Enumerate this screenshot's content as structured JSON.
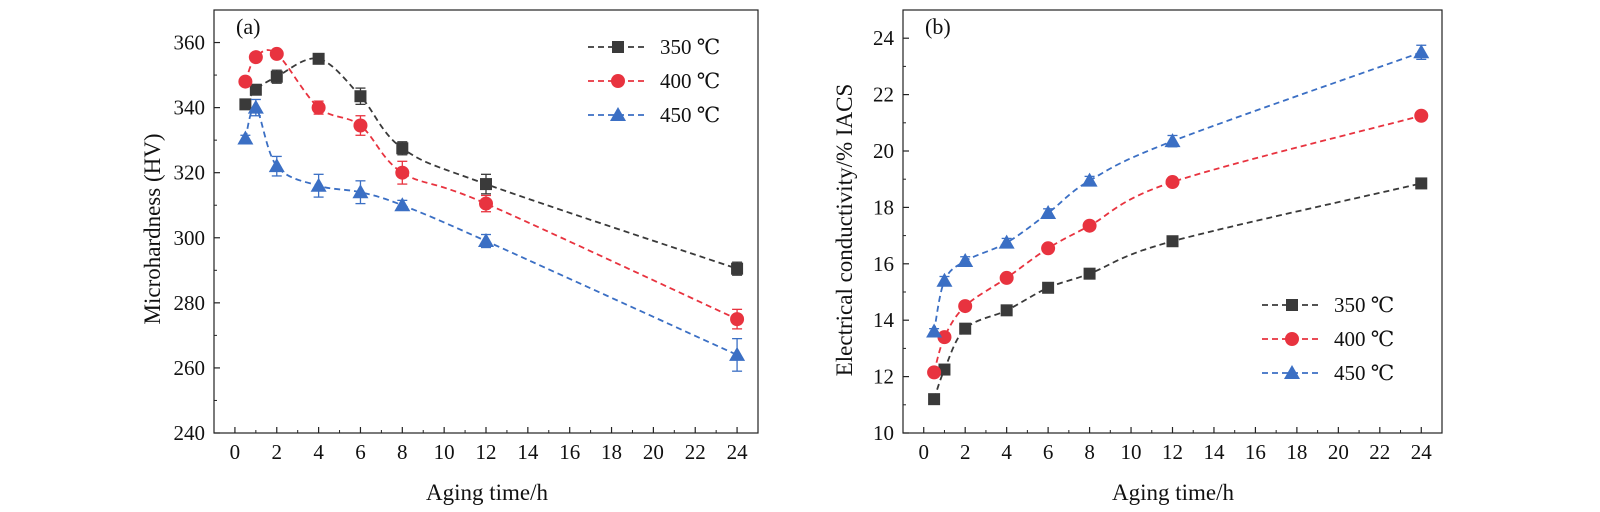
{
  "chart_data": [
    {
      "panel_label": "(a)",
      "type": "line",
      "x": [
        0.5,
        1,
        2,
        4,
        6,
        8,
        12,
        24
      ],
      "xlabel": "Aging time/h",
      "ylabel": "Microhardness (HV)",
      "xlim": [
        -1,
        25
      ],
      "ylim": [
        240,
        370
      ],
      "xticks": [
        "0",
        "2",
        "4",
        "6",
        "8",
        "10",
        "12",
        "14",
        "16",
        "18",
        "20",
        "22",
        "24"
      ],
      "yticks": [
        "240",
        "260",
        "280",
        "300",
        "320",
        "340",
        "360"
      ],
      "grid": false,
      "legend_position": "top-right",
      "series": [
        {
          "name": "350 ℃",
          "color": "#3a3a3a",
          "marker": "square",
          "values": [
            341,
            345.5,
            349.5,
            355,
            343.5,
            327.5,
            316.5,
            290.5
          ],
          "errors": [
            1,
            1.5,
            2,
            1.5,
            2.5,
            2,
            3,
            2
          ]
        },
        {
          "name": "400 ℃",
          "color": "#e8333f",
          "marker": "circle",
          "values": [
            348,
            355.5,
            356.5,
            340,
            334.5,
            320,
            310.5,
            275
          ],
          "errors": [
            1,
            1,
            1,
            2,
            3,
            3.5,
            2.5,
            3
          ]
        },
        {
          "name": "450 ℃",
          "color": "#3b6fc4",
          "marker": "triangle",
          "values": [
            330.5,
            340,
            322,
            316,
            314,
            310,
            299,
            264
          ],
          "errors": [
            1,
            2.5,
            3,
            3.5,
            3.5,
            1.5,
            2,
            5
          ]
        }
      ]
    },
    {
      "panel_label": "(b)",
      "type": "line",
      "x": [
        0.5,
        1,
        2,
        4,
        6,
        8,
        12,
        24
      ],
      "xlabel": "Aging time/h",
      "ylabel": "Electrical conductivity/% IACS",
      "xlim": [
        -1,
        25
      ],
      "ylim": [
        10,
        25
      ],
      "xticks": [
        "0",
        "2",
        "4",
        "6",
        "8",
        "10",
        "12",
        "14",
        "16",
        "18",
        "20",
        "22",
        "24"
      ],
      "yticks": [
        "10",
        "12",
        "14",
        "16",
        "18",
        "20",
        "22",
        "24"
      ],
      "grid": false,
      "legend_position": "bottom-right",
      "series": [
        {
          "name": "350 ℃",
          "color": "#3a3a3a",
          "marker": "square",
          "values": [
            11.2,
            12.25,
            13.7,
            14.35,
            15.15,
            15.65,
            16.8,
            18.85
          ],
          "errors": [
            0.1,
            0.1,
            0.1,
            0.1,
            0.1,
            0.1,
            0.1,
            0.1
          ]
        },
        {
          "name": "400 ℃",
          "color": "#e8333f",
          "marker": "circle",
          "values": [
            12.15,
            13.4,
            14.5,
            15.5,
            16.55,
            17.35,
            18.9,
            21.25
          ],
          "errors": [
            0.1,
            0.1,
            0.1,
            0.1,
            0.1,
            0.1,
            0.1,
            0.1
          ]
        },
        {
          "name": "450 ℃",
          "color": "#3b6fc4",
          "marker": "triangle",
          "values": [
            13.6,
            15.4,
            16.1,
            16.75,
            17.8,
            18.95,
            20.35,
            23.5
          ],
          "errors": [
            0.1,
            0.15,
            0.15,
            0.15,
            0.15,
            0.15,
            0.2,
            0.25
          ]
        }
      ]
    }
  ]
}
